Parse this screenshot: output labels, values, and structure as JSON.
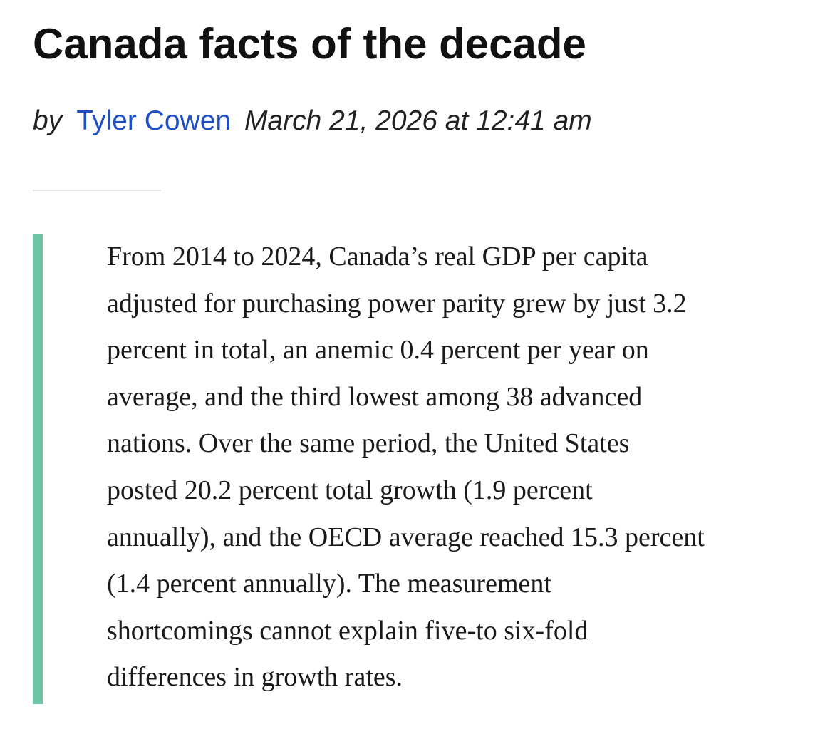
{
  "post": {
    "title": "Canada facts of the decade",
    "byline_prefix": "by",
    "author": "Tyler Cowen",
    "date": "March 21, 2026 at 12:41 am"
  },
  "quote": {
    "lines": [
      "From 2014 to 2024, Canada’s real GDP per capita",
      "adjusted for purchasing power parity grew by just 3.2",
      "percent in total, an anemic 0.4 percent per year on",
      "average, and the third lowest among 38 advanced",
      "nations. Over the same period, the United States",
      "posted 20.2 percent total growth (1.9 percent",
      "annually), and the OECD average reached 15.3 percent",
      "(1.4 percent annually). The measurement",
      "shortcomings cannot explain five-to six-fold",
      "differences in growth rates."
    ]
  },
  "colors": {
    "title": "#111111",
    "author_link": "#1f4fc4",
    "quote_bar": "#6cc6a4",
    "divider": "#e4e4e4"
  }
}
